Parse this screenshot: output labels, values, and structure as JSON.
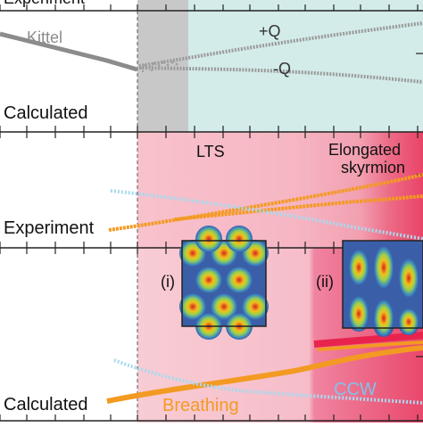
{
  "chart_data": [
    {
      "type": "line",
      "panel": "top",
      "labels": {
        "partial_top": "Experiment",
        "bottom_left": "Calculated",
        "kittel": "Kittel",
        "plus_q": "+Q",
        "minus_q": "-Q"
      },
      "colors": {
        "kittel": "#8c8c8c",
        "q_modes": "#9a9a9a",
        "gray_band": "#c8c8c8",
        "teal_band": "#d3ecea"
      },
      "series": [
        {
          "name": "Kittel",
          "x": [
            0,
            0.5,
            1.0
          ],
          "y": [
            0.74,
            0.64,
            0.52
          ]
        },
        {
          "name": "+Q",
          "x": [
            1.2,
            1.5,
            2.0,
            2.5,
            3.0
          ],
          "y": [
            0.47,
            0.53,
            0.6,
            0.67,
            0.73
          ]
        },
        {
          "name": "-Q",
          "x": [
            1.2,
            1.5,
            2.0,
            2.5,
            3.0
          ],
          "y": [
            0.46,
            0.47,
            0.44,
            0.41,
            0.37
          ]
        }
      ]
    },
    {
      "type": "line",
      "panel": "middle",
      "labels": {
        "lts": "LTS",
        "elongated_1": "Elongated",
        "elongated_2": "skyrmion",
        "experiment": "Experiment"
      },
      "colors": {
        "orange": "#f39a22",
        "blue": "#a9d9ee",
        "lts_band": "#f9c9d2",
        "elongated_band": "#ec5474"
      },
      "series": [
        {
          "color": "orange",
          "x": [
            0.0,
            0.4,
            0.8,
            1.2,
            1.6,
            2.0,
            2.3
          ],
          "y": [
            0.14,
            0.22,
            0.3,
            0.38,
            0.45,
            0.52,
            0.55
          ]
        },
        {
          "color": "orange",
          "x": [
            1.5,
            1.8,
            2.1,
            2.4,
            2.7,
            3.0
          ],
          "y": [
            0.35,
            0.42,
            0.5,
            0.58,
            0.64,
            0.7
          ]
        },
        {
          "color": "blue",
          "x": [
            0.0,
            0.5,
            1.0,
            1.5,
            2.0,
            2.5,
            3.0
          ],
          "y": [
            0.46,
            0.41,
            0.36,
            0.3,
            0.24,
            0.18,
            0.12
          ]
        }
      ]
    },
    {
      "type": "line",
      "panel": "bottom",
      "labels": {
        "inset_i": "(i)",
        "inset_ii": "(ii)",
        "calculated": "Calculated",
        "breathing": "Breathing",
        "ccw": "CCW"
      },
      "colors": {
        "orange": "#f39a22",
        "blue": "#a9d9ee",
        "ccw_text": "#7fc4ea",
        "breathing_text": "#f39a22"
      },
      "series": [
        {
          "name": "Breathing",
          "color": "orange",
          "x": [
            0.0,
            0.5,
            1.0,
            1.5,
            2.0
          ],
          "y": [
            0.06,
            0.14,
            0.2,
            0.26,
            0.32
          ]
        },
        {
          "color": "orange",
          "x": [
            2.0,
            2.3,
            2.6,
            2.9,
            3.2
          ],
          "y": [
            0.35,
            0.4,
            0.44,
            0.48,
            0.52
          ]
        },
        {
          "name": "CCW",
          "color": "blue",
          "x": [
            0.0,
            0.5,
            1.0,
            1.5,
            2.0,
            2.5,
            3.0
          ],
          "y": [
            0.5,
            0.38,
            0.28,
            0.2,
            0.14,
            0.11,
            0.1
          ]
        }
      ]
    }
  ]
}
